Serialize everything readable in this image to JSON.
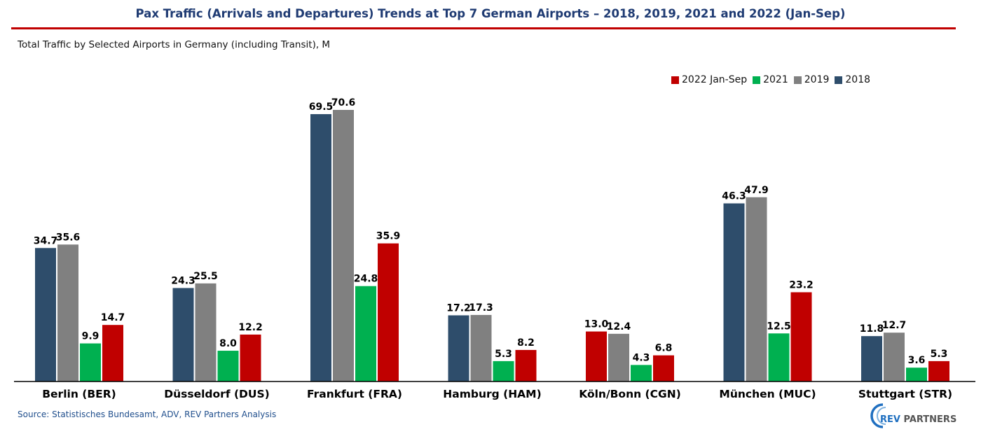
{
  "title": "Pax Traffic (Arrivals and Departures) Trends at Top 7 German Airports – 2018, 2019, 2021 and 2022 (Jan-Sep)",
  "subtitle": "Total Traffic by Selected Airports in Germany (including Transit), M",
  "source": "Source: Statistisches Bundesamt, ADV, REV Partners Analysis",
  "logo": {
    "icon": "rev-partners-logo-icon",
    "brand": "REV",
    "suffix": "PARTNERS"
  },
  "legend": [
    {
      "name": "2022 Jan-Sep",
      "color": "#c00000"
    },
    {
      "name": "2021",
      "color": "#00b050"
    },
    {
      "name": "2019",
      "color": "#808080"
    },
    {
      "name": "2018",
      "color": "#2e4d6b"
    }
  ],
  "chart_data": {
    "type": "bar",
    "categories": [
      "Berlin (BER)",
      "Düsseldorf (DUS)",
      "Frankfurt (FRA)",
      "Hamburg (HAM)",
      "Köln/Bonn (CGN)",
      "München (MUC)",
      "Stuttgart (STR)"
    ],
    "series": [
      {
        "name": "2018",
        "color": "#2e4d6b",
        "values": [
          34.7,
          24.3,
          69.5,
          17.2,
          null,
          46.3,
          11.8
        ]
      },
      {
        "name": "2019",
        "color": "#808080",
        "values": [
          35.6,
          25.5,
          70.6,
          17.3,
          12.4,
          47.9,
          12.7
        ]
      },
      {
        "name": "2021",
        "color": "#00b050",
        "values": [
          9.9,
          8.0,
          24.8,
          5.3,
          4.3,
          12.5,
          3.6
        ]
      },
      {
        "name": "2022 Jan-Sep",
        "color": "#c00000",
        "values": [
          14.7,
          12.2,
          35.9,
          8.2,
          6.8,
          23.2,
          5.3
        ]
      }
    ],
    "extra_bars": [
      {
        "category": "Köln/Bonn (CGN)",
        "slot": 0,
        "color": "#c00000",
        "value": 13.0
      }
    ],
    "ylim": [
      0,
      75
    ],
    "grid": false,
    "legend_position": "top-right"
  }
}
